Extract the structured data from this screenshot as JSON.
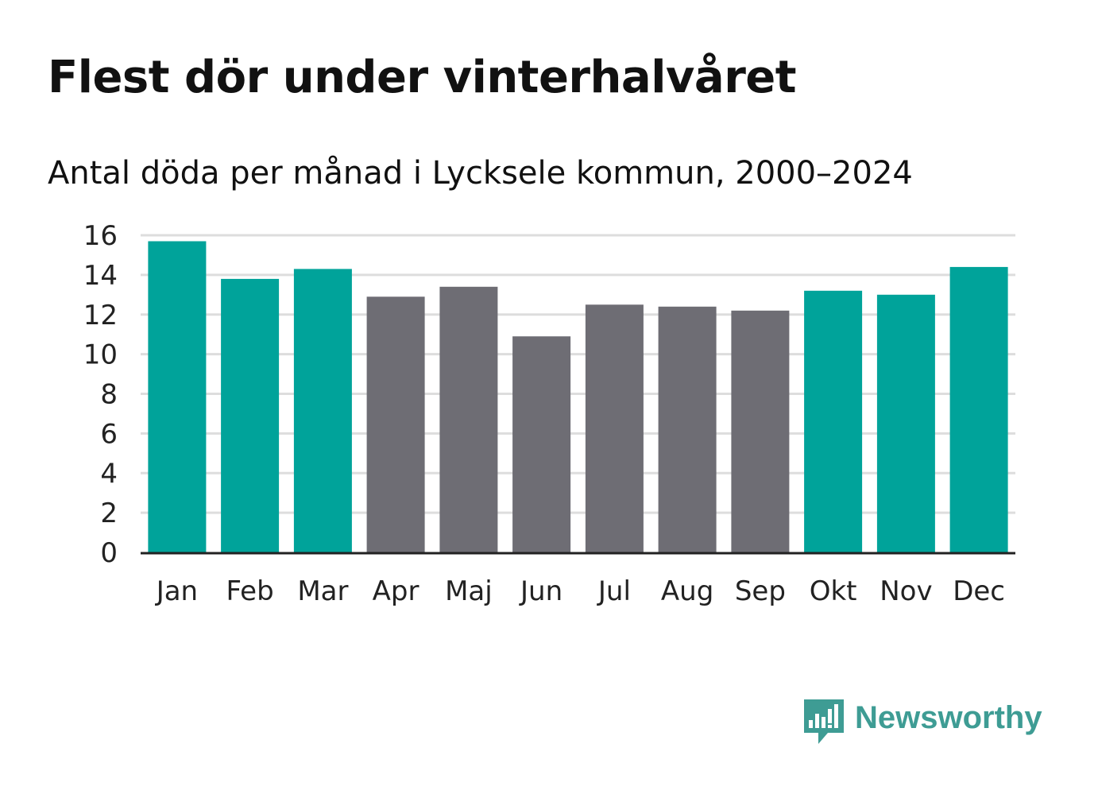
{
  "header": {
    "title": "Flest dör under vinterhalvåret",
    "subtitle": "Antal döda per månad i Lycksele kommun, 2000–2024"
  },
  "chart_data": {
    "type": "bar",
    "title": "Flest dör under vinterhalvåret",
    "subtitle": "Antal döda per månad i Lycksele kommun, 2000–2024",
    "xlabel": "",
    "ylabel": "",
    "ylim": [
      0,
      16
    ],
    "yticks": [
      0,
      2,
      4,
      6,
      8,
      10,
      12,
      14,
      16
    ],
    "grid": true,
    "categories": [
      "Jan",
      "Feb",
      "Mar",
      "Apr",
      "Maj",
      "Jun",
      "Jul",
      "Aug",
      "Sep",
      "Okt",
      "Nov",
      "Dec"
    ],
    "values": [
      15.7,
      13.8,
      14.3,
      12.9,
      13.4,
      10.9,
      12.5,
      12.4,
      12.2,
      13.2,
      13.0,
      14.4
    ],
    "groups": [
      "winter",
      "winter",
      "winter",
      "summer",
      "summer",
      "summer",
      "summer",
      "summer",
      "summer",
      "winter",
      "winter",
      "winter"
    ],
    "colors": {
      "winter": "#00a39a",
      "summer": "#6e6d74",
      "grid": "#dddddd",
      "axis": "#222222",
      "tick_text": "#222222"
    }
  },
  "brand": {
    "name": "Newsworthy",
    "logo_icon": "newsworthy-bar-chart-bubble-icon",
    "color": "#3e9c94"
  }
}
